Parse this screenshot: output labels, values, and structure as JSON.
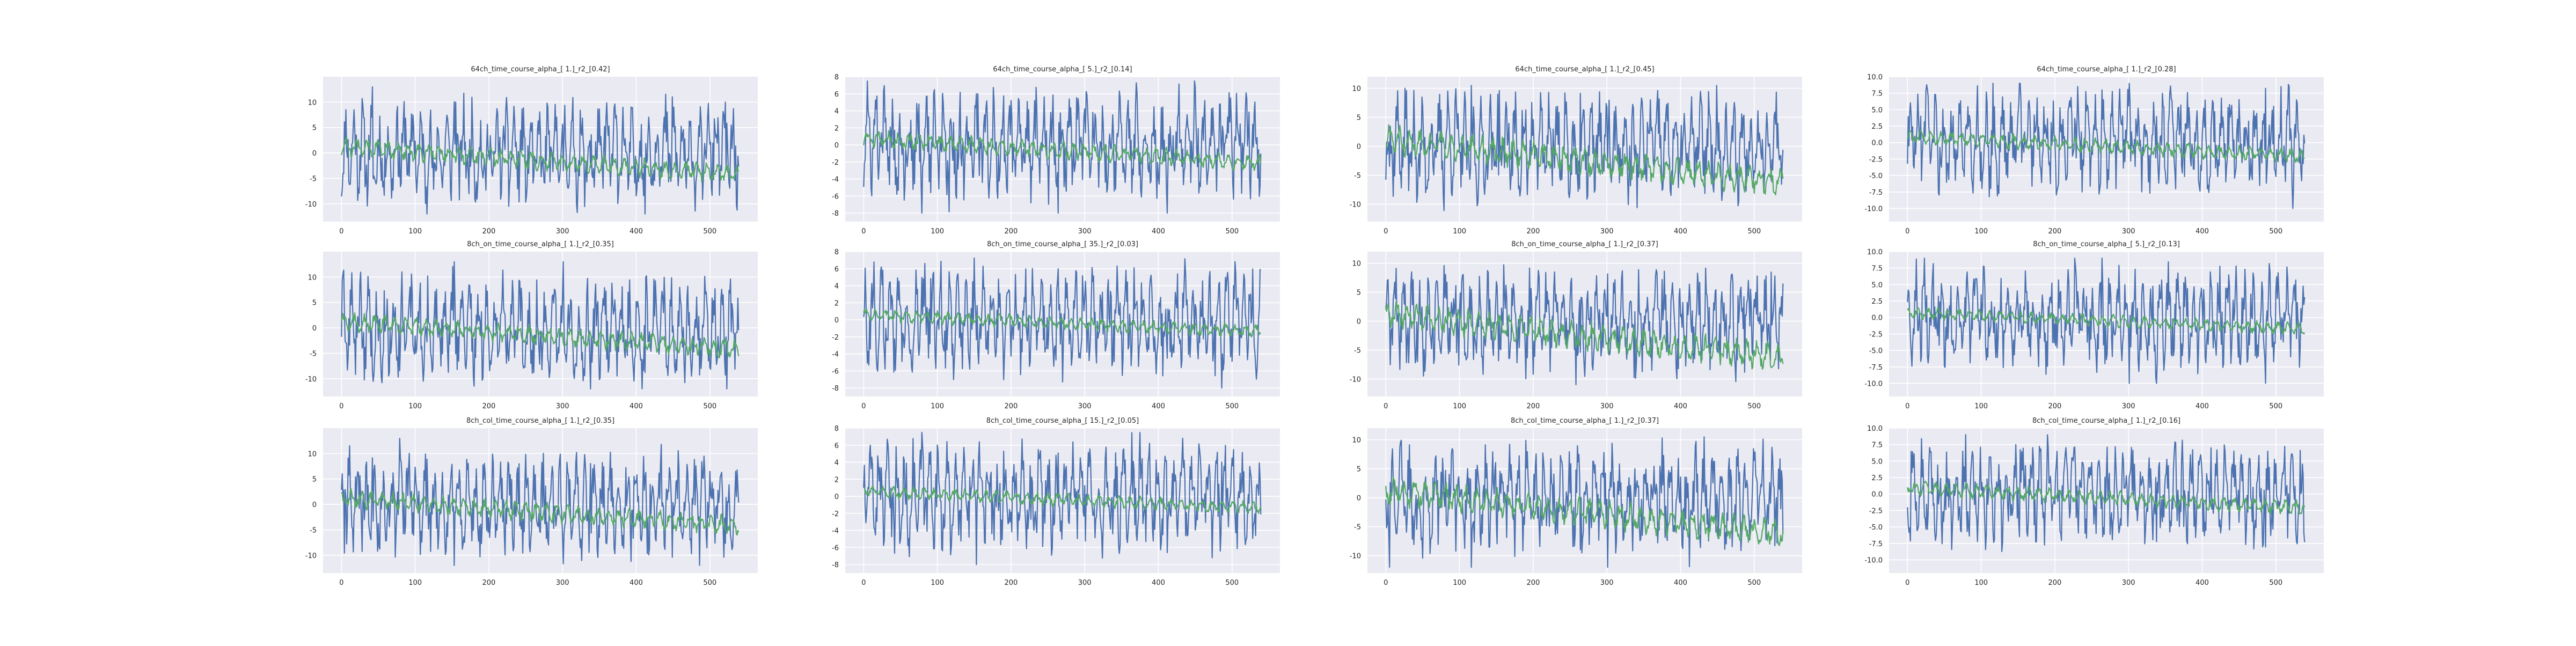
{
  "chart_data": [
    {
      "type": "line",
      "title": "64ch_time_course_alpha_[ 1.]_r2_[0.42]",
      "xlim": [
        -25,
        565
      ],
      "ylim": [
        -13.5,
        15
      ],
      "xticks": [
        0,
        100,
        200,
        300,
        400,
        500
      ],
      "yticks": [
        -10,
        -5,
        0,
        5,
        10
      ],
      "ytick_labels": [
        "-10",
        "-5",
        "0",
        "5",
        "10"
      ],
      "grid": true,
      "colors": [
        "#4c72b0",
        "#55a868"
      ],
      "series_ranges": [
        {
          "min": -12,
          "max": 13
        },
        {
          "min": -6,
          "max": 4
        }
      ]
    },
    {
      "type": "line",
      "title": "64ch_time_course_alpha_[ 5.]_r2_[0.14]",
      "xlim": [
        -25,
        565
      ],
      "ylim": [
        -9,
        8
      ],
      "xticks": [
        0,
        100,
        200,
        300,
        400,
        500
      ],
      "yticks": [
        -8,
        -6,
        -4,
        -2,
        0,
        2,
        4,
        6,
        8
      ],
      "ytick_labels": [
        "-8",
        "-6",
        "-4",
        "-2",
        "0",
        "2",
        "4",
        "6",
        "8"
      ],
      "grid": true,
      "colors": [
        "#4c72b0",
        "#55a868"
      ],
      "series_ranges": [
        {
          "min": -8,
          "max": 7.5
        },
        {
          "min": -3,
          "max": 2.5
        }
      ]
    },
    {
      "type": "line",
      "title": "64ch_time_course_alpha_[ 1.]_r2_[0.45]",
      "xlim": [
        -25,
        565
      ],
      "ylim": [
        -13,
        12
      ],
      "xticks": [
        0,
        100,
        200,
        300,
        400,
        500
      ],
      "yticks": [
        -10,
        -5,
        0,
        5,
        10
      ],
      "ytick_labels": [
        "-10",
        "-5",
        "0",
        "5",
        "10"
      ],
      "grid": true,
      "colors": [
        "#4c72b0",
        "#55a868"
      ],
      "series_ranges": [
        {
          "min": -12,
          "max": 10.5
        },
        {
          "min": -9,
          "max": 4
        }
      ]
    },
    {
      "type": "line",
      "title": "64ch_time_course_alpha_[ 1.]_r2_[0.28]",
      "xlim": [
        -25,
        565
      ],
      "ylim": [
        -12,
        10
      ],
      "xticks": [
        0,
        100,
        200,
        300,
        400,
        500
      ],
      "yticks": [
        -10,
        -7.5,
        -5,
        -2.5,
        0,
        2.5,
        5,
        7.5,
        10
      ],
      "ytick_labels": [
        "-10.0",
        "-7.5",
        "-5.0",
        "-2.5",
        "0.0",
        "2.5",
        "5.0",
        "7.5",
        "10.0"
      ],
      "grid": true,
      "colors": [
        "#4c72b0",
        "#55a868"
      ],
      "series_ranges": [
        {
          "min": -10,
          "max": 9
        },
        {
          "min": -3,
          "max": 3
        }
      ]
    },
    {
      "type": "line",
      "title": "8ch_on_time_course_alpha_[ 1.]_r2_[0.35]",
      "xlim": [
        -25,
        565
      ],
      "ylim": [
        -13.5,
        15
      ],
      "xticks": [
        0,
        100,
        200,
        300,
        400,
        500
      ],
      "yticks": [
        -10,
        -5,
        0,
        5,
        10
      ],
      "ytick_labels": [
        "-10",
        "-5",
        "0",
        "5",
        "10"
      ],
      "grid": true,
      "colors": [
        "#4c72b0",
        "#55a868"
      ],
      "series_ranges": [
        {
          "min": -12,
          "max": 13
        },
        {
          "min": -6,
          "max": 4
        }
      ]
    },
    {
      "type": "line",
      "title": "8ch_on_time_course_alpha_[ 35.]_r2_[0.03]",
      "xlim": [
        -25,
        565
      ],
      "ylim": [
        -9,
        8
      ],
      "xticks": [
        0,
        100,
        200,
        300,
        400,
        500
      ],
      "yticks": [
        -8,
        -6,
        -4,
        -2,
        0,
        2,
        4,
        6,
        8
      ],
      "ytick_labels": [
        "-8",
        "-6",
        "-4",
        "-2",
        "0",
        "2",
        "4",
        "6",
        "8"
      ],
      "grid": true,
      "colors": [
        "#4c72b0",
        "#55a868"
      ],
      "series_ranges": [
        {
          "min": -8,
          "max": 7.5
        },
        {
          "min": -2,
          "max": 2
        }
      ]
    },
    {
      "type": "line",
      "title": "8ch_on_time_course_alpha_[ 1.]_r2_[0.37]",
      "xlim": [
        -25,
        565
      ],
      "ylim": [
        -13,
        12
      ],
      "xticks": [
        0,
        100,
        200,
        300,
        400,
        500
      ],
      "yticks": [
        -10,
        -5,
        0,
        5,
        10
      ],
      "ytick_labels": [
        "-10",
        "-5",
        "0",
        "5",
        "10"
      ],
      "grid": true,
      "colors": [
        "#4c72b0",
        "#55a868"
      ],
      "series_ranges": [
        {
          "min": -12,
          "max": 10.5
        },
        {
          "min": -9,
          "max": 4
        }
      ]
    },
    {
      "type": "line",
      "title": "8ch_on_time_course_alpha_[ 5.]_r2_[0.13]",
      "xlim": [
        -25,
        565
      ],
      "ylim": [
        -12,
        10
      ],
      "xticks": [
        0,
        100,
        200,
        300,
        400,
        500
      ],
      "yticks": [
        -10,
        -7.5,
        -5,
        -2.5,
        0,
        2.5,
        5,
        7.5,
        10
      ],
      "ytick_labels": [
        "-10.0",
        "-7.5",
        "-5.0",
        "-2.5",
        "0.0",
        "2.5",
        "5.0",
        "7.5",
        "10.0"
      ],
      "grid": true,
      "colors": [
        "#4c72b0",
        "#55a868"
      ],
      "series_ranges": [
        {
          "min": -10,
          "max": 9
        },
        {
          "min": -2.5,
          "max": 2.5
        }
      ]
    },
    {
      "type": "line",
      "title": "8ch_col_time_course_alpha_[ 1.]_r2_[0.35]",
      "xlim": [
        -25,
        565
      ],
      "ylim": [
        -13.5,
        15
      ],
      "xticks": [
        0,
        100,
        200,
        300,
        400,
        500
      ],
      "yticks": [
        -10,
        -5,
        0,
        5,
        10
      ],
      "ytick_labels": [
        "-10",
        "-5",
        "0",
        "5",
        "10"
      ],
      "grid": true,
      "colors": [
        "#4c72b0",
        "#55a868"
      ],
      "series_ranges": [
        {
          "min": -12,
          "max": 13
        },
        {
          "min": -6,
          "max": 4
        }
      ]
    },
    {
      "type": "line",
      "title": "8ch_col_time_course_alpha_[ 15.]_r2_[0.05]",
      "xlim": [
        -25,
        565
      ],
      "ylim": [
        -9,
        8
      ],
      "xticks": [
        0,
        100,
        200,
        300,
        400,
        500
      ],
      "yticks": [
        -8,
        -6,
        -4,
        -2,
        0,
        2,
        4,
        6,
        8
      ],
      "ytick_labels": [
        "-8",
        "-6",
        "-4",
        "-2",
        "0",
        "2",
        "4",
        "6",
        "8"
      ],
      "grid": true,
      "colors": [
        "#4c72b0",
        "#55a868"
      ],
      "series_ranges": [
        {
          "min": -8,
          "max": 7.5
        },
        {
          "min": -2,
          "max": 2
        }
      ]
    },
    {
      "type": "line",
      "title": "8ch_col_time_course_alpha_[ 1.]_r2_[0.37]",
      "xlim": [
        -25,
        565
      ],
      "ylim": [
        -13,
        12
      ],
      "xticks": [
        0,
        100,
        200,
        300,
        400,
        500
      ],
      "yticks": [
        -10,
        -5,
        0,
        5,
        10
      ],
      "ytick_labels": [
        "-10",
        "-5",
        "0",
        "5",
        "10"
      ],
      "grid": true,
      "colors": [
        "#4c72b0",
        "#55a868"
      ],
      "series_ranges": [
        {
          "min": -12,
          "max": 10.5
        },
        {
          "min": -9,
          "max": 4
        }
      ]
    },
    {
      "type": "line",
      "title": "8ch_col_time_course_alpha_[ 1.]_r2_[0.16]",
      "xlim": [
        -25,
        565
      ],
      "ylim": [
        -12,
        10
      ],
      "xticks": [
        0,
        100,
        200,
        300,
        400,
        500
      ],
      "yticks": [
        -10,
        -7.5,
        -5,
        -2.5,
        0,
        2.5,
        5,
        7.5,
        10
      ],
      "ytick_labels": [
        "-10.0",
        "-7.5",
        "-5.0",
        "-2.5",
        "0.0",
        "2.5",
        "5.0",
        "7.5",
        "10.0"
      ],
      "grid": true,
      "colors": [
        "#4c72b0",
        "#55a868"
      ],
      "series_ranges": [
        {
          "min": -10,
          "max": 9
        },
        {
          "min": -3,
          "max": 3
        }
      ]
    }
  ]
}
